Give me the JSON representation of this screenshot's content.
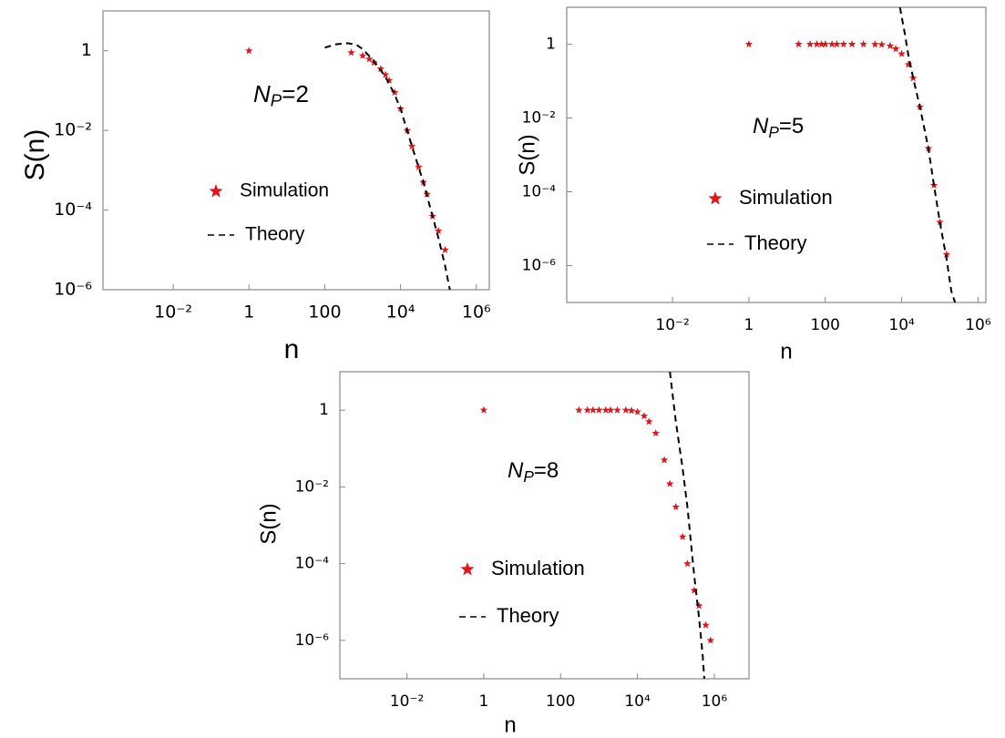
{
  "chart_data": [
    {
      "type": "scatter",
      "log_x": true,
      "log_y": true,
      "annotation": {
        "text": "N",
        "sub": "P",
        "rest": "=2"
      },
      "xlabel": "n",
      "ylabel": "S(n)",
      "legend": "center left",
      "xlim": [
        0.00014,
        2200000
      ],
      "ylim": [
        1e-06,
        10
      ],
      "xticks": [
        {
          "value": 0.01,
          "label": "10⁻²"
        },
        1,
        100,
        {
          "value": 10000,
          "label": "10⁴"
        },
        {
          "value": 1000000,
          "label": "10⁶"
        }
      ],
      "yticks": [
        {
          "value": 1e-06,
          "label": "10⁻⁶"
        },
        {
          "value": 0.0001,
          "label": "10⁻⁴"
        },
        {
          "value": 0.01,
          "label": "10⁻²"
        },
        1
      ],
      "series": [
        {
          "name": "Simulation",
          "color": "#e0161b",
          "marker": "star",
          "x": [
            1,
            500,
            1000,
            1500,
            2000,
            3000,
            4000,
            5000,
            7000,
            10000,
            15000,
            20000,
            30000,
            40000,
            50000,
            70000,
            100000,
            150000
          ],
          "values": [
            1,
            0.9,
            0.75,
            0.62,
            0.5,
            0.35,
            0.25,
            0.18,
            0.09,
            0.035,
            0.01,
            0.004,
            0.0012,
            0.0005,
            0.00025,
            7e-05,
            3e-05,
            1e-05
          ]
        },
        {
          "name": "Theory",
          "color": "#000000",
          "dash": true,
          "x": [
            100,
            200,
            400,
            700,
            1000,
            2000,
            4000,
            7000,
            10000,
            20000,
            40000,
            70000,
            100000,
            150000,
            200000
          ],
          "values": [
            1.2,
            1.45,
            1.55,
            1.4,
            1.1,
            0.55,
            0.22,
            0.08,
            0.035,
            0.004,
            0.0005,
            7e-05,
            2e-05,
            4e-06,
            1e-06
          ]
        }
      ]
    },
    {
      "type": "scatter",
      "log_x": true,
      "log_y": true,
      "annotation": {
        "text": "N",
        "sub": "P",
        "rest": "=5"
      },
      "xlabel": "n",
      "ylabel": "S(n)",
      "legend": "center left",
      "xlim": [
        1.7e-05,
        1600000
      ],
      "ylim": [
        1e-07,
        10
      ],
      "xticks": [
        {
          "value": 0.01,
          "label": "10⁻²"
        },
        1,
        100,
        {
          "value": 10000,
          "label": "10⁴"
        },
        {
          "value": 1000000,
          "label": "10⁶"
        }
      ],
      "yticks": [
        {
          "value": 1e-06,
          "label": "10⁻⁶"
        },
        {
          "value": 0.0001,
          "label": "10⁻⁴"
        },
        {
          "value": 0.01,
          "label": "10⁻²"
        },
        1
      ],
      "series": [
        {
          "name": "Simulation",
          "color": "#e0161b",
          "marker": "star",
          "x": [
            1,
            20,
            40,
            60,
            80,
            100,
            150,
            200,
            300,
            500,
            1000,
            2000,
            3000,
            5000,
            7000,
            10000,
            15000,
            20000,
            30000,
            50000,
            70000,
            100000,
            150000
          ],
          "values": [
            1,
            1,
            1,
            1,
            1,
            1,
            1,
            1,
            1,
            1,
            1,
            0.99,
            0.98,
            0.9,
            0.75,
            0.55,
            0.28,
            0.12,
            0.02,
            0.0015,
            0.00015,
            1.5e-05,
            2e-06
          ]
        },
        {
          "name": "Theory",
          "color": "#000000",
          "dash": true,
          "x": [
            9000,
            12000,
            15000,
            20000,
            30000,
            50000,
            70000,
            100000,
            150000,
            200000,
            250000
          ],
          "values": [
            10,
            2,
            0.5,
            0.12,
            0.02,
            0.0015,
            0.00015,
            1.5e-05,
            1.5e-06,
            2e-07,
            1e-07
          ]
        }
      ]
    },
    {
      "type": "scatter",
      "log_x": true,
      "log_y": true,
      "annotation": {
        "text": "N",
        "sub": "P",
        "rest": "=8"
      },
      "xlabel": "n",
      "ylabel": "S(n)",
      "legend": "center left",
      "xlim": [
        0.00018,
        8000000
      ],
      "ylim": [
        1e-07,
        10
      ],
      "xticks": [
        {
          "value": 0.01,
          "label": "10⁻²"
        },
        1,
        100,
        {
          "value": 10000,
          "label": "10⁴"
        },
        {
          "value": 1000000,
          "label": "10⁶"
        }
      ],
      "yticks": [
        {
          "value": 1e-06,
          "label": "10⁻⁶"
        },
        {
          "value": 0.0001,
          "label": "10⁻⁴"
        },
        {
          "value": 0.01,
          "label": "10⁻²"
        },
        1
      ],
      "series": [
        {
          "name": "Simulation",
          "color": "#e0161b",
          "marker": "star",
          "x": [
            1,
            300,
            500,
            700,
            1000,
            1500,
            2000,
            3000,
            5000,
            7000,
            10000,
            15000,
            20000,
            30000,
            50000,
            70000,
            100000,
            150000,
            200000,
            300000,
            400000,
            600000,
            800000
          ],
          "values": [
            1,
            1,
            1,
            1,
            1,
            1,
            1,
            1,
            1,
            0.97,
            0.9,
            0.7,
            0.5,
            0.25,
            0.05,
            0.012,
            0.003,
            0.0005,
            0.0001,
            2e-05,
            8e-06,
            2.5e-06,
            1e-06
          ]
        },
        {
          "name": "Theory",
          "color": "#000000",
          "dash": true,
          "x": [
            70000,
            100000,
            150000,
            200000,
            300000,
            400000,
            500000,
            550000
          ],
          "values": [
            10,
            0.5,
            0.03,
            0.003,
            5e-05,
            4e-06,
            4e-07,
            1e-07
          ]
        }
      ]
    }
  ]
}
